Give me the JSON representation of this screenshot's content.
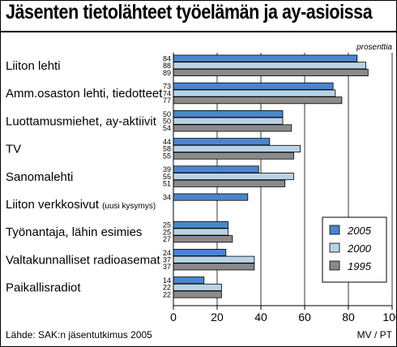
{
  "chart_data": {
    "type": "bar",
    "orientation": "horizontal",
    "title": "Jäsenten tietolähteet työelämän ja ay-asioissa",
    "unit": "prosenttia",
    "categories": [
      {
        "label": "Liiton lehti",
        "note": ""
      },
      {
        "label": "Amm.osaston lehti, tiedotteet",
        "note": ""
      },
      {
        "label": "Luottamusmiehet, ay-aktiivit",
        "note": ""
      },
      {
        "label": "TV",
        "note": ""
      },
      {
        "label": "Sanomalehti",
        "note": ""
      },
      {
        "label": "Liiton verkkosivut",
        "note": "(uusi kysymys)"
      },
      {
        "label": "Työnantaja, lähin esimies",
        "note": ""
      },
      {
        "label": "Valtakunnalliset radioasemat",
        "note": ""
      },
      {
        "label": "Paikallisradiot",
        "note": ""
      }
    ],
    "series": [
      {
        "name": "2005",
        "color": "#4a86cf",
        "values": [
          84,
          73,
          50,
          44,
          39,
          34,
          25,
          24,
          14
        ]
      },
      {
        "name": "2000",
        "color": "#b9d3e6",
        "values": [
          88,
          74,
          50,
          58,
          55,
          null,
          25,
          37,
          22
        ]
      },
      {
        "name": "1995",
        "color": "#8a8a8a",
        "values": [
          89,
          77,
          54,
          55,
          51,
          null,
          27,
          37,
          22
        ]
      }
    ],
    "xlim": [
      0,
      100
    ],
    "xticks": [
      0,
      20,
      40,
      60,
      80,
      100
    ],
    "grid": true,
    "legend": "bottom-right",
    "source": "Lähde: SAK:n jäsentutkimus 2005",
    "credit": "MV / PT"
  }
}
